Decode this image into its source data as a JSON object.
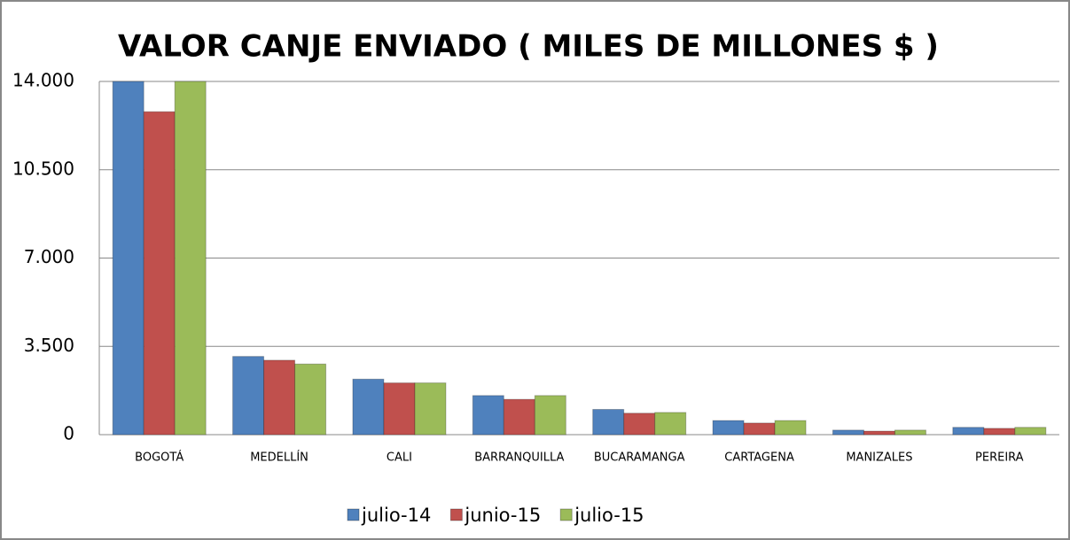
{
  "chart_data": {
    "type": "bar",
    "title": "VALOR CANJE ENVIADO ( MILES DE MILLONES $ )",
    "categories": [
      "BOGOTÁ",
      "MEDELLÍN",
      "CALI",
      "BARRANQUILLA",
      "BUCARAMANGA",
      "CARTAGENA",
      "MANIZALES",
      "PEREIRA"
    ],
    "series": [
      {
        "name": "julio-14",
        "color": "#4f81bd",
        "values": [
          14000,
          3100,
          2200,
          1550,
          1000,
          560,
          180,
          290
        ]
      },
      {
        "name": "junio-15",
        "color": "#c0504d",
        "values": [
          12800,
          2950,
          2050,
          1400,
          850,
          460,
          140,
          250
        ]
      },
      {
        "name": "julio-15",
        "color": "#9bbb59",
        "values": [
          14000,
          2800,
          2050,
          1550,
          880,
          560,
          180,
          290
        ]
      }
    ],
    "ylim": [
      0,
      14000
    ],
    "yticks": [
      0,
      {
        "value": 3500,
        "label": "3.500"
      },
      {
        "value": 7000,
        "label": "7.000"
      },
      {
        "value": 10500,
        "label": "10.500"
      },
      {
        "value": 14000,
        "label": "14.000"
      }
    ],
    "grid": true,
    "legend": "bottom"
  }
}
